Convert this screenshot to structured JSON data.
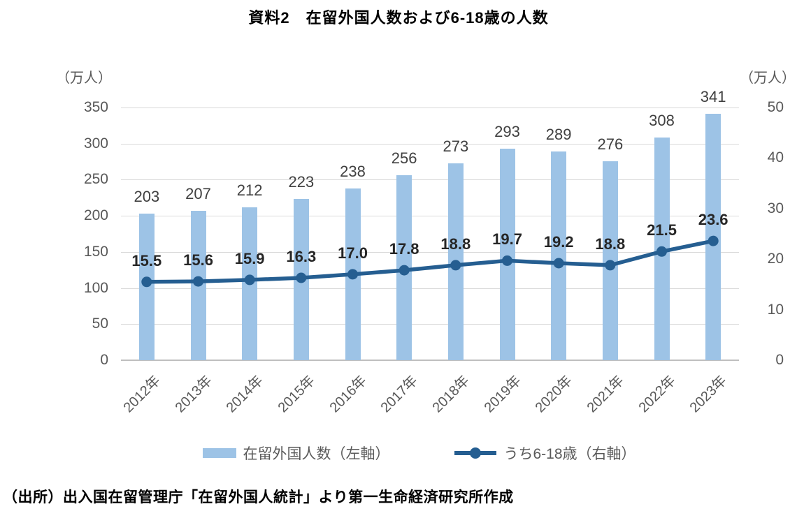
{
  "title": "資料2　在留外国人数および6-18歳の人数",
  "axes": {
    "left": {
      "unit": "（万人）",
      "ticks": [
        350,
        300,
        250,
        200,
        150,
        100,
        50,
        0
      ],
      "max": 350
    },
    "right": {
      "unit": "（万人）",
      "ticks": [
        50,
        40,
        30,
        20,
        10,
        0
      ],
      "max": 50
    }
  },
  "legend": [
    {
      "label": "在留外国人数（左軸）",
      "marker": "bar-swatch"
    },
    {
      "label": "うち6-18歳（右軸）",
      "marker": "line-dot-swatch"
    }
  ],
  "source": "（出所）出入国在留管理庁「在留外国人統計」より第一生命経済研究所作成",
  "colors": {
    "bar": "#9DC3E6",
    "line": "#255E91",
    "grid": "#D9D9D9",
    "baseline": "#BFBFBF",
    "tick_text": "#595959",
    "bar_label": "#404040",
    "line_label": "#262626"
  },
  "chart_data": {
    "type": "bar",
    "subtype": "bar+line combo",
    "title": "資料2　在留外国人数および6-18歳の人数",
    "categories": [
      "2012年",
      "2013年",
      "2014年",
      "2015年",
      "2016年",
      "2017年",
      "2018年",
      "2019年",
      "2020年",
      "2021年",
      "2022年",
      "2023年"
    ],
    "series": [
      {
        "name": "在留外国人数（左軸）",
        "type": "bar",
        "axis": "left",
        "values": [
          203,
          207,
          212,
          223,
          238,
          256,
          273,
          293,
          289,
          276,
          308,
          341
        ]
      },
      {
        "name": "うち6-18歳（右軸）",
        "type": "line",
        "axis": "right",
        "values": [
          15.5,
          15.6,
          15.9,
          16.3,
          17.0,
          17.8,
          18.8,
          19.7,
          19.2,
          18.8,
          21.5,
          23.6
        ]
      }
    ],
    "left_ylabel": "（万人）",
    "right_ylabel": "（万人）",
    "left_ylim": [
      0,
      350
    ],
    "right_ylim": [
      0,
      50
    ],
    "grid": true,
    "legend_position": "bottom"
  }
}
